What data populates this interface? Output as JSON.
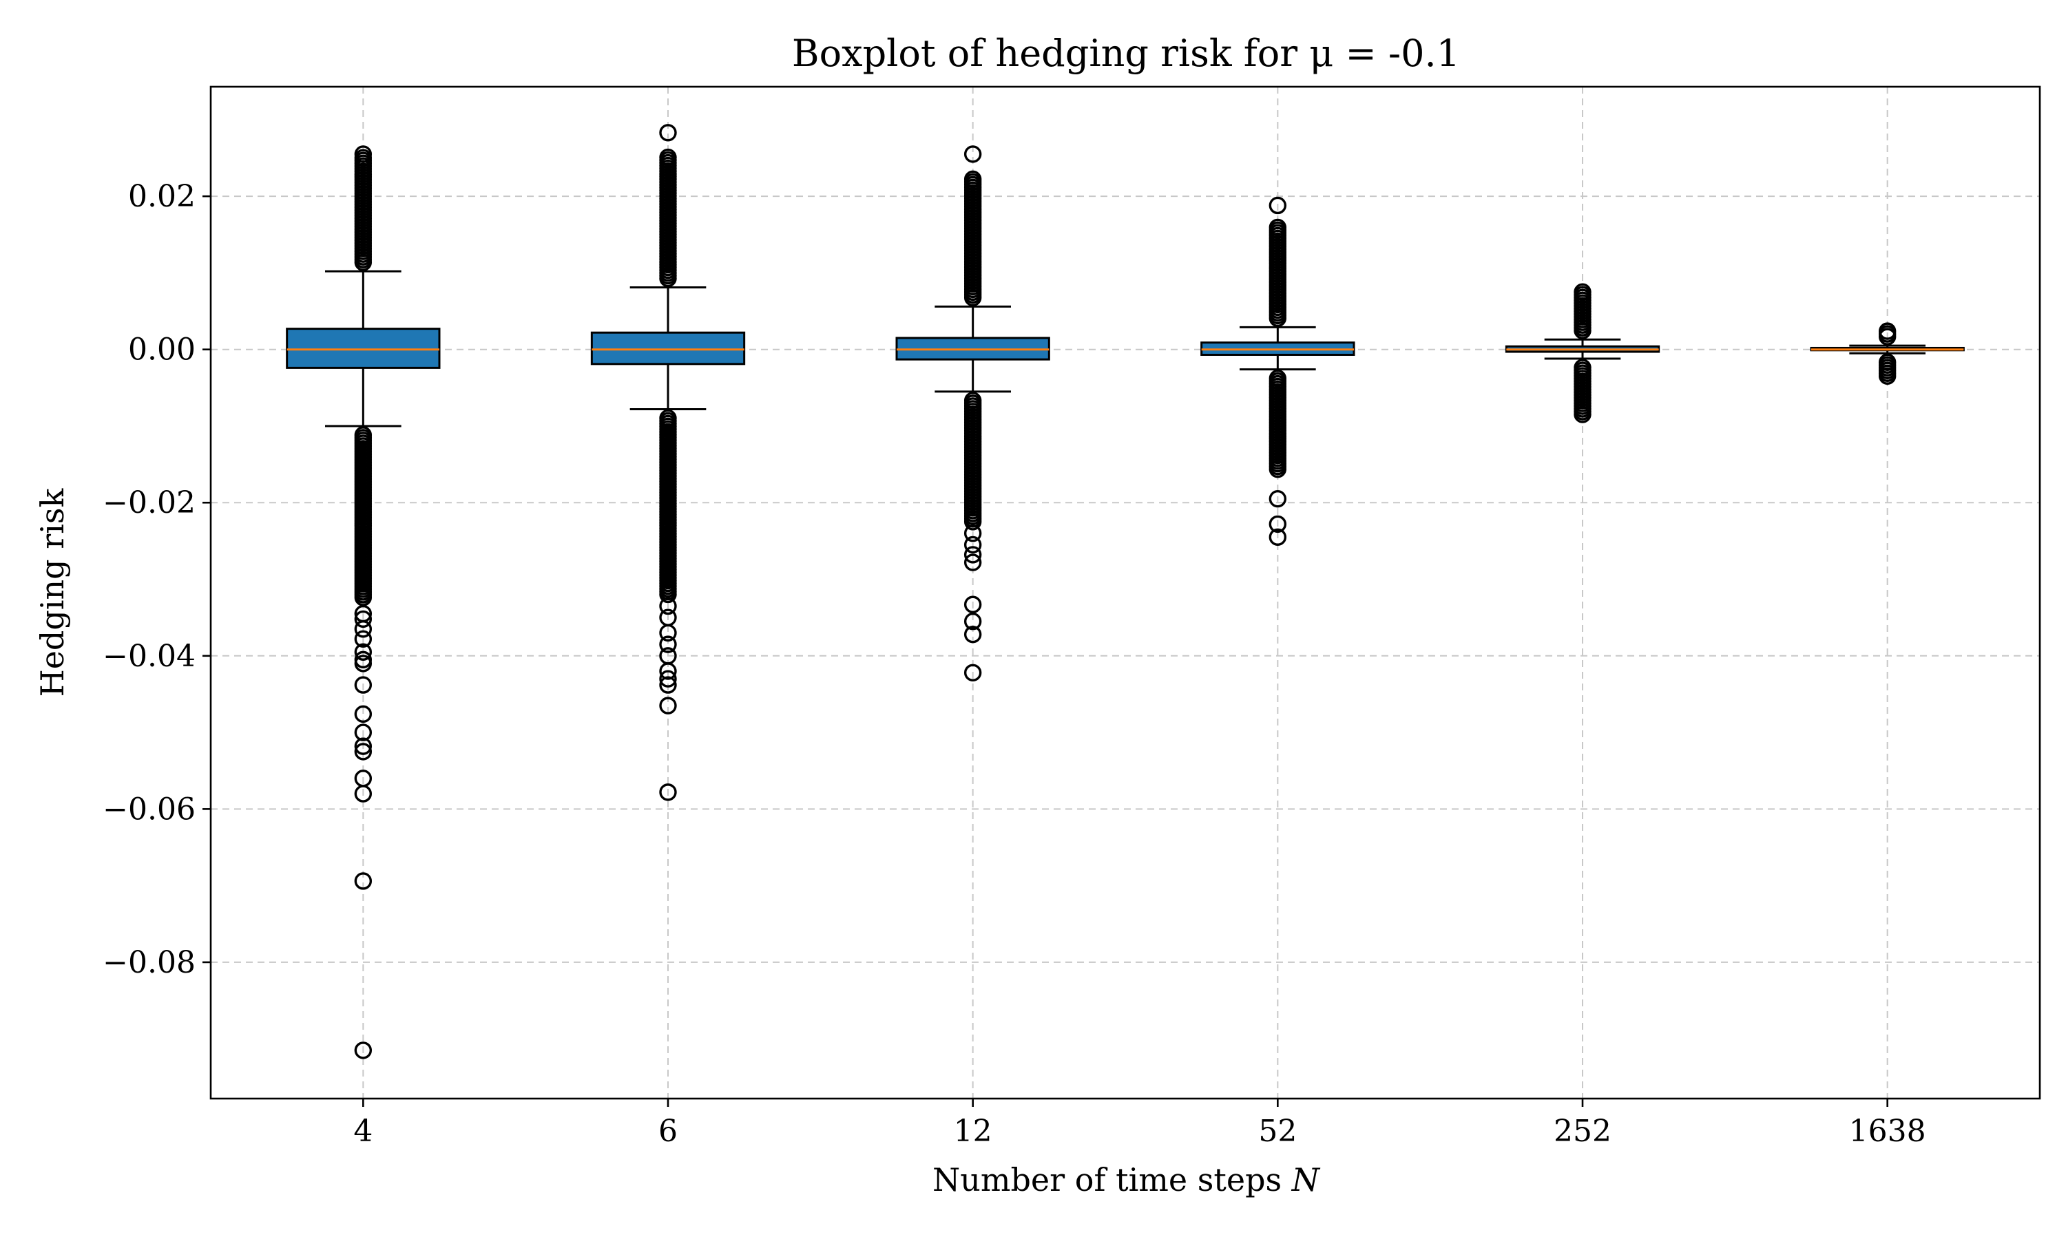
{
  "chart_data": {
    "type": "boxplot",
    "title": "Boxplot of hedging risk for μ = -0.1",
    "xlabel": "Number of time steps N",
    "ylabel": "Hedging risk",
    "ylim": [
      -0.0978,
      0.0343
    ],
    "yticks": [
      0.02,
      0.0,
      -0.02,
      -0.04,
      -0.06,
      -0.08
    ],
    "ytick_labels": [
      "0.02",
      "0.00",
      "−0.02",
      "−0.04",
      "−0.06",
      "−0.08"
    ],
    "grid": true,
    "categories": [
      "4",
      "6",
      "12",
      "52",
      "252",
      "1638"
    ],
    "colors": {
      "box": "#1f77b4",
      "median": "#ff7f0e",
      "grid": "#c8c8c8"
    },
    "boxes": [
      {
        "category": "4",
        "q1": -0.0024,
        "median": 0.0,
        "q3": 0.0027,
        "whisker_low": -0.01,
        "whisker_high": 0.0102,
        "upper_fliers": {
          "dense_from": 0.0102,
          "dense_to": 0.0252,
          "isolated": [
            0.0255
          ]
        },
        "lower_fliers": {
          "dense_from": -0.01,
          "dense_to": -0.0325,
          "isolated": [
            -0.0345,
            -0.0352,
            -0.0365,
            -0.0378,
            -0.0395,
            -0.0405,
            -0.041,
            -0.0438,
            -0.0476,
            -0.05,
            -0.0518,
            -0.0525,
            -0.056,
            -0.058,
            -0.0694,
            -0.0915
          ]
        }
      },
      {
        "category": "6",
        "q1": -0.0019,
        "median": 0.0,
        "q3": 0.0022,
        "whisker_low": -0.0078,
        "whisker_high": 0.0081,
        "upper_fliers": {
          "dense_from": 0.0081,
          "dense_to": 0.0252,
          "isolated": [
            0.0283
          ]
        },
        "lower_fliers": {
          "dense_from": -0.0078,
          "dense_to": -0.032,
          "isolated": [
            -0.0335,
            -0.035,
            -0.037,
            -0.0385,
            -0.04,
            -0.042,
            -0.043,
            -0.0438,
            -0.0465,
            -0.0578
          ]
        }
      },
      {
        "category": "12",
        "q1": -0.0013,
        "median": 0.0,
        "q3": 0.0015,
        "whisker_low": -0.0055,
        "whisker_high": 0.0056,
        "upper_fliers": {
          "dense_from": 0.0056,
          "dense_to": 0.0225,
          "isolated": [
            0.0255
          ]
        },
        "lower_fliers": {
          "dense_from": -0.0055,
          "dense_to": -0.0225,
          "isolated": [
            -0.024,
            -0.0255,
            -0.0268,
            -0.0278,
            -0.0333,
            -0.0355,
            -0.0372,
            -0.0422
          ]
        }
      },
      {
        "category": "52",
        "q1": -0.0007,
        "median": 0.0,
        "q3": 0.0009,
        "whisker_low": -0.0026,
        "whisker_high": 0.0029,
        "upper_fliers": {
          "dense_from": 0.0029,
          "dense_to": 0.016,
          "isolated": [
            0.0188
          ]
        },
        "lower_fliers": {
          "dense_from": -0.0026,
          "dense_to": -0.0158,
          "isolated": [
            -0.0195,
            -0.0228,
            -0.0245
          ]
        }
      },
      {
        "category": "252",
        "q1": -0.0003,
        "median": 0.0,
        "q3": 0.0004,
        "whisker_low": -0.0012,
        "whisker_high": 0.0013,
        "upper_fliers": {
          "dense_from": 0.0013,
          "dense_to": 0.0078,
          "isolated": []
        },
        "lower_fliers": {
          "dense_from": -0.0012,
          "dense_to": -0.0088,
          "isolated": []
        }
      },
      {
        "category": "1638",
        "q1": -0.0001,
        "median": 0.0,
        "q3": 0.0002,
        "whisker_low": -0.0005,
        "whisker_high": 0.0005,
        "upper_fliers": {
          "dense_from": 0.0005,
          "dense_to": 0.0027,
          "isolated": []
        },
        "lower_fliers": {
          "dense_from": -0.0005,
          "dense_to": -0.0035,
          "isolated": []
        }
      }
    ]
  }
}
